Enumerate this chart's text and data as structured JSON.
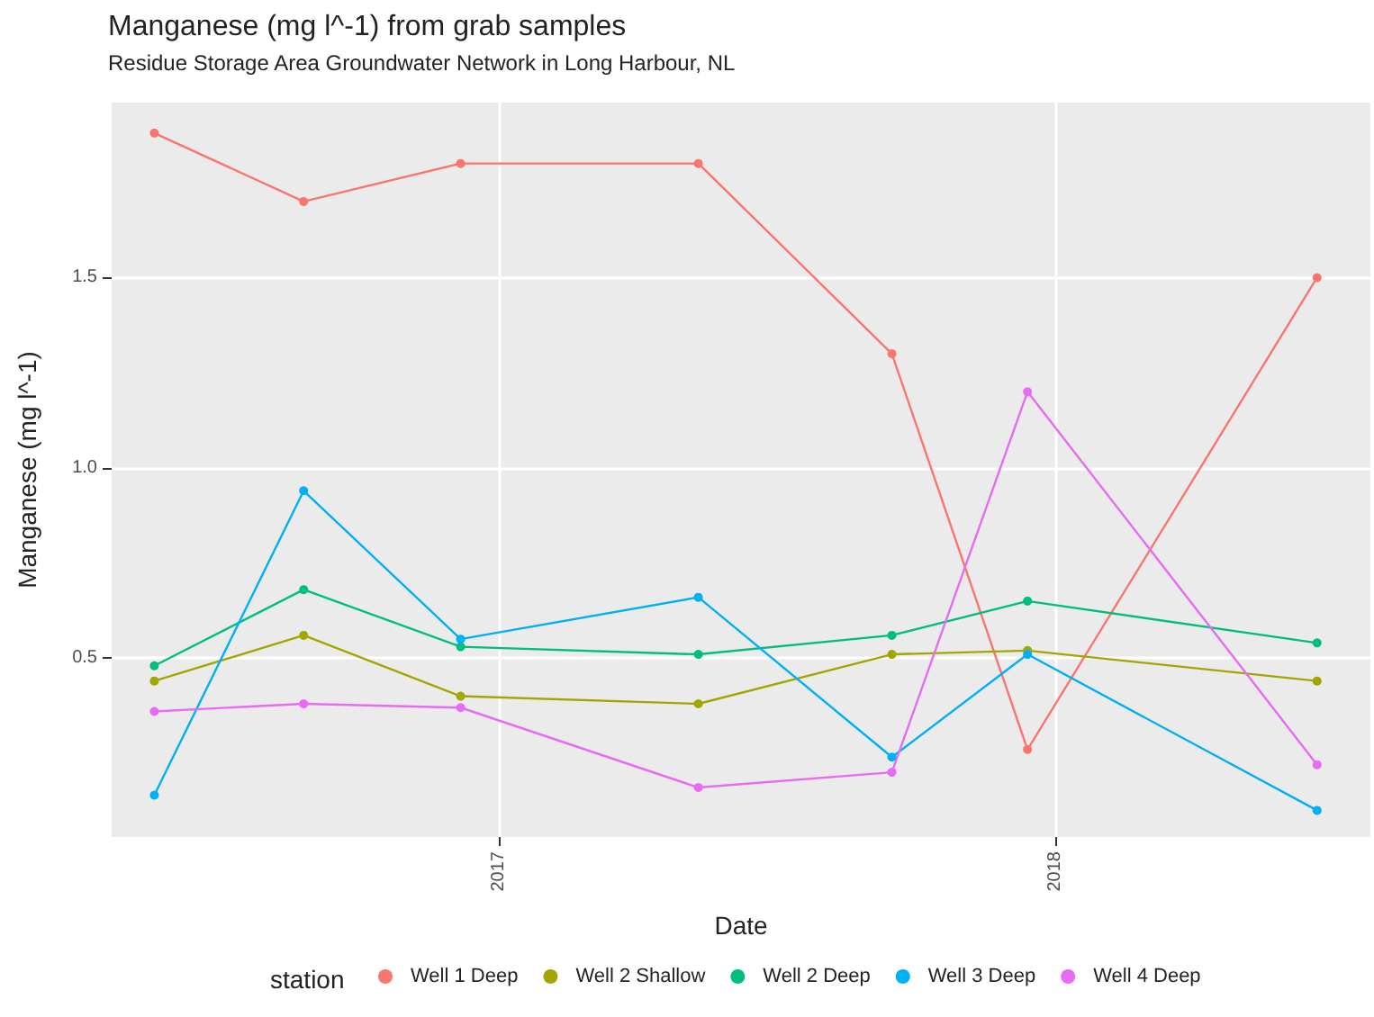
{
  "chart_data": {
    "type": "line",
    "title": "Manganese (mg l^-1) from grab samples",
    "subtitle": "Residue Storage Area Groundwater Network in Long Harbour, NL",
    "xlabel": "Date",
    "ylabel": "Manganese (mg l^-1)",
    "legend_title": "station",
    "x": [
      "2016-05-20",
      "2016-08-26",
      "2016-12-07",
      "2017-05-12",
      "2017-09-16",
      "2017-12-14",
      "2018-06-22"
    ],
    "xlim": [
      "2016-04-22",
      "2018-07-27"
    ],
    "xticks": [
      {
        "value": "2017-01-01",
        "label": "2017"
      },
      {
        "value": "2018-01-01",
        "label": "2018"
      }
    ],
    "ylim": [
      0.03,
      1.96
    ],
    "yticks": [
      {
        "value": 0.5,
        "label": "0.5"
      },
      {
        "value": 1.0,
        "label": "1.0"
      },
      {
        "value": 1.5,
        "label": "1.5"
      }
    ],
    "grid": true,
    "legend": "bottom",
    "marker": "circle",
    "line_style": "solid",
    "series": [
      {
        "name": "Well 1 Deep",
        "color": "#f8766d",
        "values": [
          1.88,
          1.7,
          1.8,
          1.8,
          1.3,
          0.26,
          1.5
        ]
      },
      {
        "name": "Well 2 Shallow",
        "color": "#a3a500",
        "values": [
          0.44,
          0.56,
          0.4,
          0.38,
          0.51,
          0.52,
          0.44
        ]
      },
      {
        "name": "Well 2 Deep",
        "color": "#00bf7d",
        "values": [
          0.48,
          0.68,
          0.53,
          0.51,
          0.56,
          0.65,
          0.54
        ]
      },
      {
        "name": "Well 3 Deep",
        "color": "#00b0f6",
        "values": [
          0.14,
          0.94,
          0.55,
          0.66,
          0.24,
          0.51,
          0.1
        ]
      },
      {
        "name": "Well 4 Deep",
        "color": "#e76bf3",
        "values": [
          0.36,
          0.38,
          0.37,
          0.16,
          0.2,
          1.2,
          0.22
        ]
      }
    ]
  }
}
